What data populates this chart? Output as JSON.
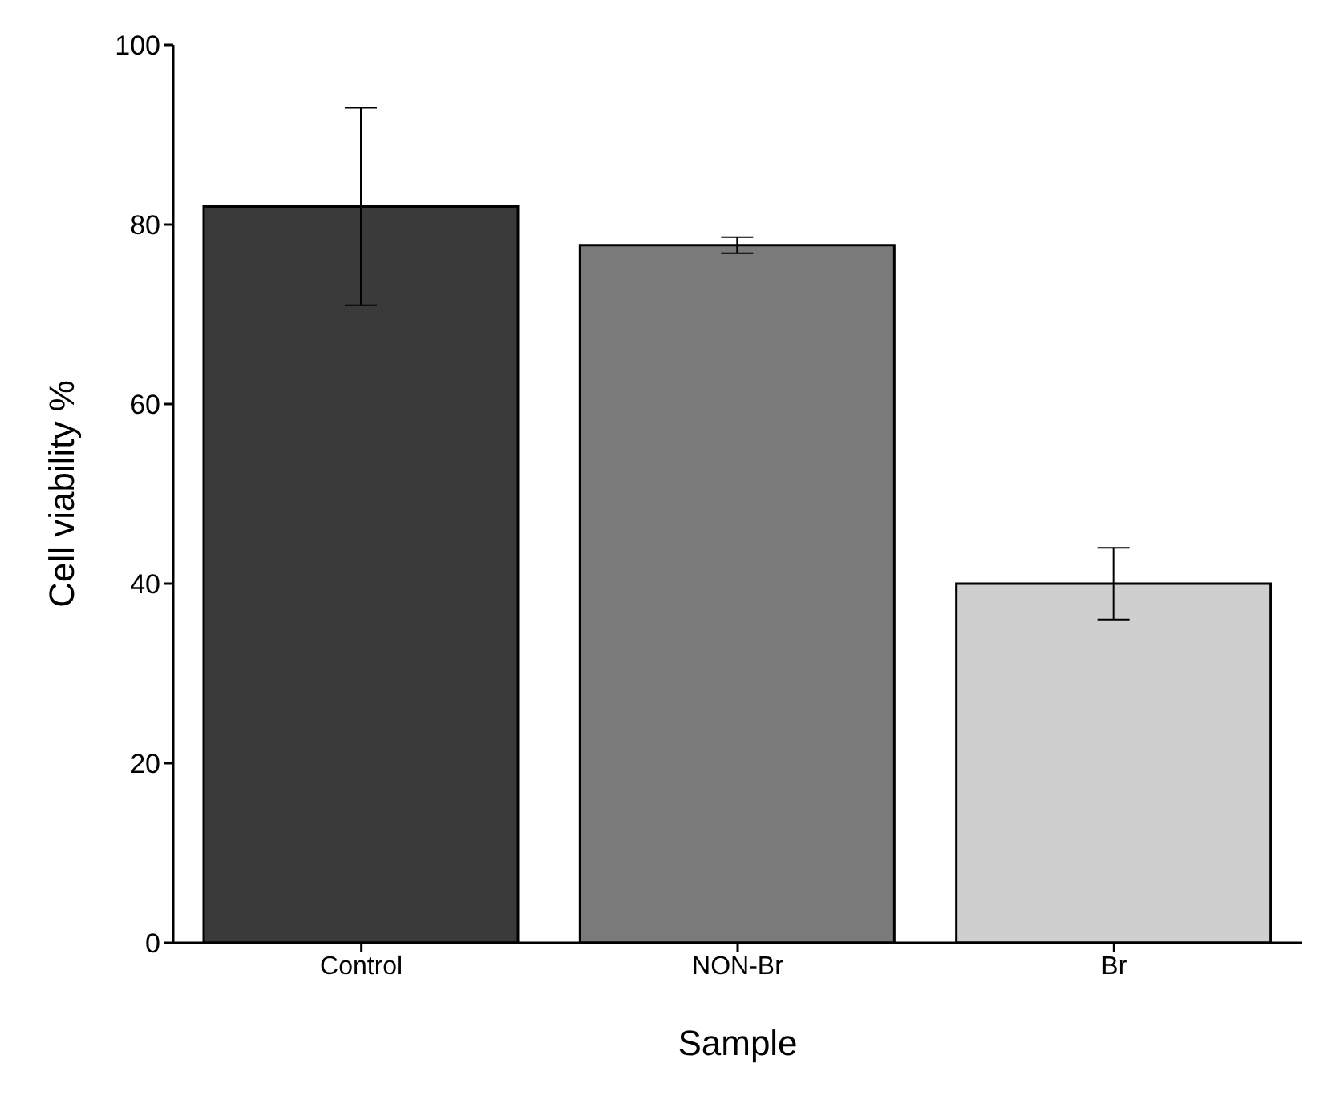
{
  "chart_data": {
    "type": "bar",
    "xlabel": "Sample",
    "ylabel": "Cell viability %",
    "categories": [
      "Control",
      "NON-Br",
      "Br"
    ],
    "values": [
      82,
      77.7,
      40
    ],
    "errors": [
      11,
      0.9,
      4
    ],
    "colors": [
      "#3a3a3a",
      "#7a7a7a",
      "#cfcfcf"
    ],
    "ylim": [
      0,
      100
    ],
    "yticks": [
      0,
      20,
      40,
      60,
      80,
      100
    ],
    "grid": false,
    "legend": false
  }
}
